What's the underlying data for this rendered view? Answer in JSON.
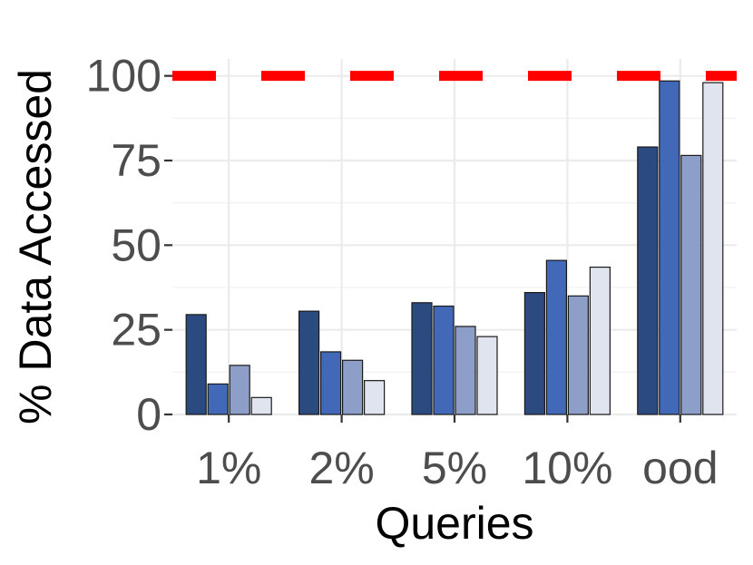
{
  "chart_data": {
    "type": "bar",
    "xlabel": "Queries",
    "ylabel": "% Data Accessed",
    "categories": [
      "1%",
      "2%",
      "5%",
      "10%",
      "ood"
    ],
    "series": [
      {
        "values": [
          29.5,
          30.5,
          33,
          36,
          79
        ],
        "color": "#2b4a80"
      },
      {
        "values": [
          9,
          18.5,
          32,
          45.5,
          98.5
        ],
        "color": "#4169b8"
      },
      {
        "values": [
          14.5,
          16,
          26,
          35,
          76.5
        ],
        "color": "#8d9fc8"
      },
      {
        "values": [
          5,
          10,
          23,
          43.5,
          98
        ],
        "color": "#dfe4ef"
      }
    ],
    "y_ticks": [
      0,
      25,
      50,
      75,
      100
    ],
    "ylim": [
      0,
      105
    ],
    "reference_line": {
      "y": 100,
      "style": "dashed",
      "color": "#ff0000"
    },
    "grid": true,
    "legend": "none"
  }
}
